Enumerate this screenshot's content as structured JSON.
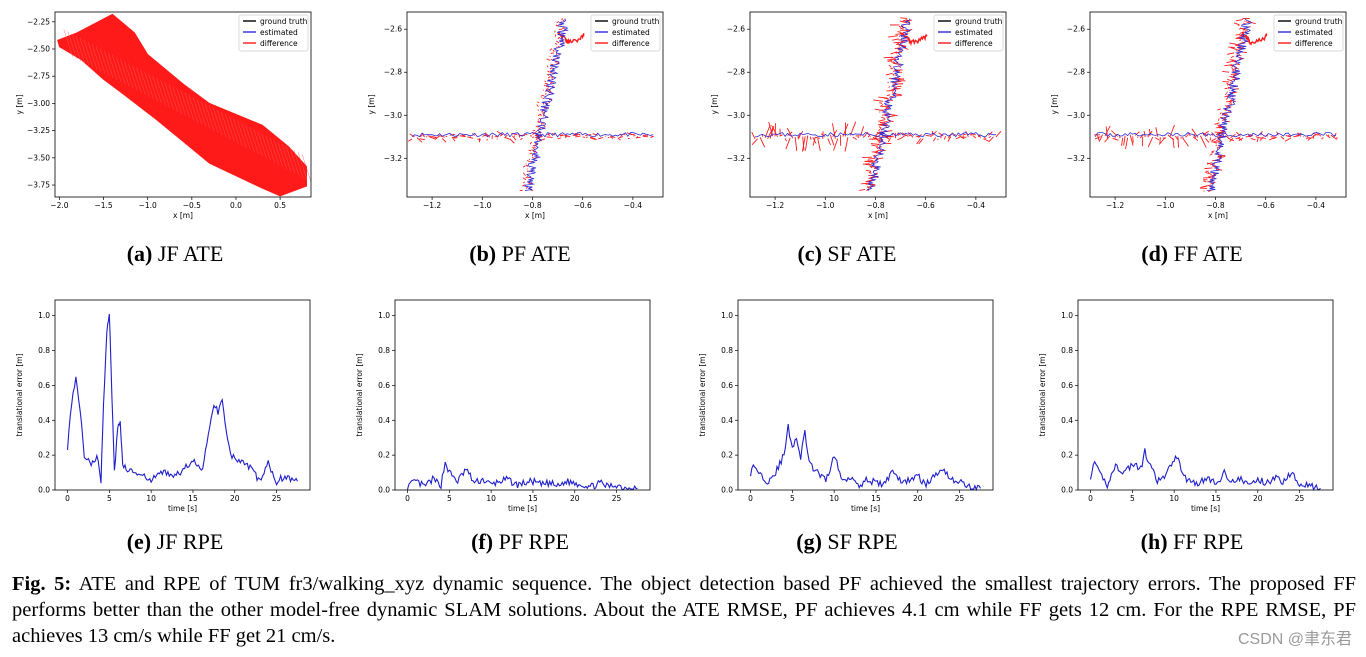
{
  "colors": {
    "ground_truth": "#000000",
    "estimated": "#2b2bd9",
    "difference": "#ff1a1a",
    "rpe_line": "#1f1fcc"
  },
  "legend": [
    "ground truth",
    "estimated",
    "difference"
  ],
  "subcaptions": [
    {
      "letter": "(a)",
      "text": "JF ATE"
    },
    {
      "letter": "(b)",
      "text": "PF ATE"
    },
    {
      "letter": "(c)",
      "text": "SF ATE"
    },
    {
      "letter": "(d)",
      "text": "FF ATE"
    },
    {
      "letter": "(e)",
      "text": "JF RPE"
    },
    {
      "letter": "(f)",
      "text": "PF RPE"
    },
    {
      "letter": "(g)",
      "text": "SF RPE"
    },
    {
      "letter": "(h)",
      "text": "FF RPE"
    }
  ],
  "caption": {
    "label": "Fig. 5:",
    "text": "ATE and RPE of TUM fr3/walking_xyz dynamic sequence. The object detection based PF achieved the smallest trajectory errors. The proposed FF performs better than the other model-free dynamic SLAM solutions. About the ATE RMSE, PF achieves 4.1 cm while FF gets 12 cm. For the RPE RMSE, PF achieves 13 cm/s while FF get 21 cm/s."
  },
  "watermark": "CSDN @聿东君",
  "chart_data": [
    {
      "id": "a",
      "type": "line",
      "title": "JF ATE",
      "xlabel": "x [m]",
      "ylabel": "y [m]",
      "xlim": [
        -2.05,
        0.85
      ],
      "ylim": [
        -3.86,
        -2.16
      ],
      "xticks": [
        -2.0,
        -1.5,
        -1.0,
        -0.5,
        0.0,
        0.5
      ],
      "xtick_labels": [
        "−2.0",
        "−1.5",
        "−1.0",
        "−0.5",
        "0.0",
        "0.5"
      ],
      "yticks": [
        -2.25,
        -2.5,
        -2.75,
        -3.0,
        -3.25,
        -3.5,
        -3.75
      ],
      "ytick_labels": [
        "−2.25",
        "−2.50",
        "−2.75",
        "−3.00",
        "−3.25",
        "−3.50",
        "−3.75"
      ],
      "series": [
        {
          "name": "ground truth",
          "points": [
            [
              -2.0,
              -2.4
            ],
            [
              -1.4,
              -2.7
            ],
            [
              -1.0,
              -2.95
            ],
            [
              -0.5,
              -3.25
            ],
            [
              0.0,
              -3.45
            ],
            [
              0.5,
              -3.6
            ],
            [
              0.8,
              -3.7
            ]
          ]
        },
        {
          "name": "estimated",
          "points": [
            [
              -1.6,
              -2.5
            ],
            [
              -1.1,
              -2.8
            ],
            [
              -0.6,
              -3.15
            ],
            [
              -0.1,
              -3.4
            ],
            [
              0.4,
              -3.6
            ],
            [
              0.75,
              -3.72
            ]
          ]
        }
      ],
      "error_region": [
        [
          -2.02,
          -2.42
        ],
        [
          -1.8,
          -2.35
        ],
        [
          -1.4,
          -2.18
        ],
        [
          -1.15,
          -2.35
        ],
        [
          -1.0,
          -2.55
        ],
        [
          -0.6,
          -2.82
        ],
        [
          -0.3,
          -3.0
        ],
        [
          0.3,
          -3.2
        ],
        [
          0.6,
          -3.4
        ],
        [
          0.8,
          -3.58
        ],
        [
          0.8,
          -3.76
        ],
        [
          0.5,
          -3.85
        ],
        [
          0.3,
          -3.78
        ],
        [
          -0.3,
          -3.55
        ],
        [
          -0.6,
          -3.35
        ],
        [
          -0.9,
          -3.15
        ],
        [
          -1.3,
          -2.9
        ],
        [
          -1.5,
          -2.78
        ],
        [
          -1.75,
          -2.6
        ],
        [
          -2.0,
          -2.48
        ]
      ]
    },
    {
      "id": "b",
      "type": "line",
      "title": "PF ATE",
      "xlabel": "x [m]",
      "ylabel": "y [m]",
      "xlim": [
        -1.3,
        -0.28
      ],
      "ylim": [
        -3.38,
        -2.52
      ],
      "xticks": [
        -1.2,
        -1.0,
        -0.8,
        -0.6,
        -0.4
      ],
      "xtick_labels": [
        "−1.2",
        "−1.0",
        "−0.8",
        "−0.6",
        "−0.4"
      ],
      "yticks": [
        -2.6,
        -2.8,
        -3.0,
        -3.2
      ],
      "ytick_labels": [
        "−2.6",
        "−2.8",
        "−3.0",
        "−3.2"
      ],
      "series": [
        {
          "name": "ground truth",
          "points": [
            [
              -1.28,
              -3.11
            ],
            [
              -1.0,
              -3.1
            ],
            [
              -0.8,
              -3.1
            ],
            [
              -0.6,
              -3.11
            ],
            [
              -0.32,
              -3.09
            ]
          ]
        },
        {
          "name": "estimated",
          "points": [
            [
              -0.82,
              -3.35
            ],
            [
              -0.81,
              -3.1
            ],
            [
              -0.78,
              -2.85
            ],
            [
              -0.73,
              -2.65
            ],
            [
              -0.68,
              -2.55
            ]
          ]
        }
      ]
    },
    {
      "id": "c",
      "type": "line",
      "title": "SF ATE",
      "xlabel": "x [m]",
      "ylabel": "y [m]",
      "xlim": [
        -1.3,
        -0.28
      ],
      "ylim": [
        -3.38,
        -2.52
      ],
      "xticks": [
        -1.2,
        -1.0,
        -0.8,
        -0.6,
        -0.4
      ],
      "xtick_labels": [
        "−1.2",
        "−1.0",
        "−0.8",
        "−0.6",
        "−0.4"
      ],
      "yticks": [
        -2.6,
        -2.8,
        -3.0,
        -3.2
      ],
      "ytick_labels": [
        "−2.6",
        "−2.8",
        "−3.0",
        "−3.2"
      ],
      "series": [
        {
          "name": "ground truth",
          "points": [
            [
              -1.26,
              -3.12
            ],
            [
              -1.0,
              -3.1
            ],
            [
              -0.8,
              -3.1
            ],
            [
              -0.6,
              -3.1
            ],
            [
              -0.32,
              -3.09
            ]
          ]
        },
        {
          "name": "estimated",
          "points": [
            [
              -0.82,
              -3.35
            ],
            [
              -0.8,
              -3.1
            ],
            [
              -0.76,
              -2.85
            ],
            [
              -0.72,
              -2.65
            ],
            [
              -0.68,
              -2.55
            ]
          ]
        }
      ]
    },
    {
      "id": "d",
      "type": "line",
      "title": "FF ATE",
      "xlabel": "x [m]",
      "ylabel": "y [m]",
      "xlim": [
        -1.3,
        -0.28
      ],
      "ylim": [
        -3.38,
        -2.52
      ],
      "xticks": [
        -1.2,
        -1.0,
        -0.8,
        -0.6,
        -0.4
      ],
      "xtick_labels": [
        "−1.2",
        "−1.0",
        "−0.8",
        "−0.6",
        "−0.4"
      ],
      "yticks": [
        -2.6,
        -2.8,
        -3.0,
        -3.2
      ],
      "ytick_labels": [
        "−2.6",
        "−2.8",
        "−3.0",
        "−3.2"
      ],
      "series": [
        {
          "name": "ground truth",
          "points": [
            [
              -1.28,
              -3.12
            ],
            [
              -1.0,
              -3.1
            ],
            [
              -0.8,
              -3.1
            ],
            [
              -0.6,
              -3.1
            ],
            [
              -0.32,
              -3.09
            ]
          ]
        },
        {
          "name": "estimated",
          "points": [
            [
              -0.82,
              -3.35
            ],
            [
              -0.8,
              -3.1
            ],
            [
              -0.77,
              -2.85
            ],
            [
              -0.72,
              -2.65
            ],
            [
              -0.68,
              -2.55
            ]
          ]
        }
      ]
    },
    {
      "id": "e",
      "type": "line",
      "title": "JF RPE",
      "xlabel": "time [s]",
      "ylabel": "translational error [m]",
      "xlim": [
        -1.5,
        29
      ],
      "ylim": [
        0,
        1.09
      ],
      "xticks": [
        0,
        5,
        10,
        15,
        20,
        25
      ],
      "yticks": [
        0.0,
        0.2,
        0.4,
        0.6,
        0.8,
        1.0
      ],
      "series": [
        {
          "name": "translational error",
          "x": [
            0,
            0.5,
            1,
            1.5,
            2,
            3,
            3.5,
            4,
            4.3,
            4.7,
            5,
            5.3,
            5.6,
            6,
            6.3,
            6.6,
            7,
            8,
            9,
            10,
            11,
            12,
            13,
            14,
            15,
            16,
            17,
            17.5,
            18,
            18.5,
            19,
            19.5,
            20,
            21,
            22,
            23,
            24,
            25,
            26,
            27,
            27.5
          ],
          "y": [
            0.25,
            0.5,
            0.66,
            0.45,
            0.2,
            0.15,
            0.2,
            0.05,
            0.5,
            0.9,
            1.02,
            0.55,
            0.1,
            0.35,
            0.4,
            0.15,
            0.12,
            0.1,
            0.08,
            0.05,
            0.1,
            0.1,
            0.08,
            0.12,
            0.18,
            0.1,
            0.35,
            0.5,
            0.45,
            0.52,
            0.35,
            0.2,
            0.18,
            0.15,
            0.12,
            0.05,
            0.15,
            0.05,
            0.08,
            0.06,
            0.05
          ]
        }
      ]
    },
    {
      "id": "f",
      "type": "line",
      "title": "PF RPE",
      "xlabel": "time [s]",
      "ylabel": "translational error [m]",
      "xlim": [
        -1.5,
        29
      ],
      "ylim": [
        0,
        1.09
      ],
      "xticks": [
        0,
        5,
        10,
        15,
        20,
        25
      ],
      "yticks": [
        0.0,
        0.2,
        0.4,
        0.6,
        0.8,
        1.0
      ],
      "series": [
        {
          "name": "translational error",
          "x": [
            0,
            1,
            2,
            3,
            4,
            4.5,
            5,
            6,
            7,
            8,
            9,
            10,
            11,
            12,
            13,
            14,
            15,
            16,
            17,
            18,
            19,
            20,
            21,
            22,
            23,
            24,
            25,
            26,
            27,
            27.5
          ],
          "y": [
            0.02,
            0.05,
            0.02,
            0.06,
            0.03,
            0.16,
            0.1,
            0.05,
            0.12,
            0.04,
            0.06,
            0.03,
            0.05,
            0.06,
            0.03,
            0.04,
            0.05,
            0.03,
            0.04,
            0.02,
            0.05,
            0.04,
            0.03,
            0.02,
            0.04,
            0.02,
            0.03,
            0.01,
            0.02,
            0.01
          ]
        }
      ]
    },
    {
      "id": "g",
      "type": "line",
      "title": "SF RPE",
      "xlabel": "time [s]",
      "ylabel": "translational error [m]",
      "xlim": [
        -1.5,
        29
      ],
      "ylim": [
        0,
        1.09
      ],
      "xticks": [
        0,
        5,
        10,
        15,
        20,
        25
      ],
      "yticks": [
        0.0,
        0.2,
        0.4,
        0.6,
        0.8,
        1.0
      ],
      "series": [
        {
          "name": "translational error",
          "x": [
            0,
            0.5,
            1,
            2,
            3,
            4,
            4.5,
            5,
            5.5,
            6,
            6.5,
            7,
            8,
            9,
            10,
            11,
            12,
            13,
            14,
            15,
            16,
            17,
            18,
            19,
            20,
            21,
            22,
            23,
            24,
            25,
            26,
            27,
            27.5
          ],
          "y": [
            0.1,
            0.14,
            0.1,
            0.05,
            0.1,
            0.2,
            0.36,
            0.25,
            0.3,
            0.18,
            0.34,
            0.15,
            0.1,
            0.05,
            0.2,
            0.05,
            0.08,
            0.03,
            0.06,
            0.04,
            0.03,
            0.12,
            0.04,
            0.06,
            0.08,
            0.03,
            0.08,
            0.13,
            0.06,
            0.05,
            0.02,
            0.01,
            0.01
          ]
        }
      ]
    },
    {
      "id": "h",
      "type": "line",
      "title": "FF RPE",
      "xlabel": "time [s]",
      "ylabel": "translational error [m]",
      "xlim": [
        -1.5,
        29
      ],
      "ylim": [
        0,
        1.09
      ],
      "xticks": [
        0,
        5,
        10,
        15,
        20,
        25
      ],
      "yticks": [
        0.0,
        0.2,
        0.4,
        0.6,
        0.8,
        1.0
      ],
      "series": [
        {
          "name": "translational error",
          "x": [
            0,
            0.5,
            1,
            2,
            3,
            4,
            5,
            6,
            6.5,
            7,
            8,
            9,
            10,
            10.5,
            11,
            12,
            13,
            14,
            15,
            16,
            17,
            18,
            19,
            20,
            21,
            22,
            23,
            24,
            25,
            26,
            27,
            27.5
          ],
          "y": [
            0.08,
            0.15,
            0.1,
            0.03,
            0.14,
            0.1,
            0.15,
            0.12,
            0.22,
            0.15,
            0.05,
            0.08,
            0.18,
            0.2,
            0.08,
            0.05,
            0.04,
            0.07,
            0.03,
            0.1,
            0.05,
            0.06,
            0.03,
            0.06,
            0.04,
            0.07,
            0.05,
            0.1,
            0.04,
            0.03,
            0.01,
            0.01
          ]
        }
      ]
    }
  ]
}
